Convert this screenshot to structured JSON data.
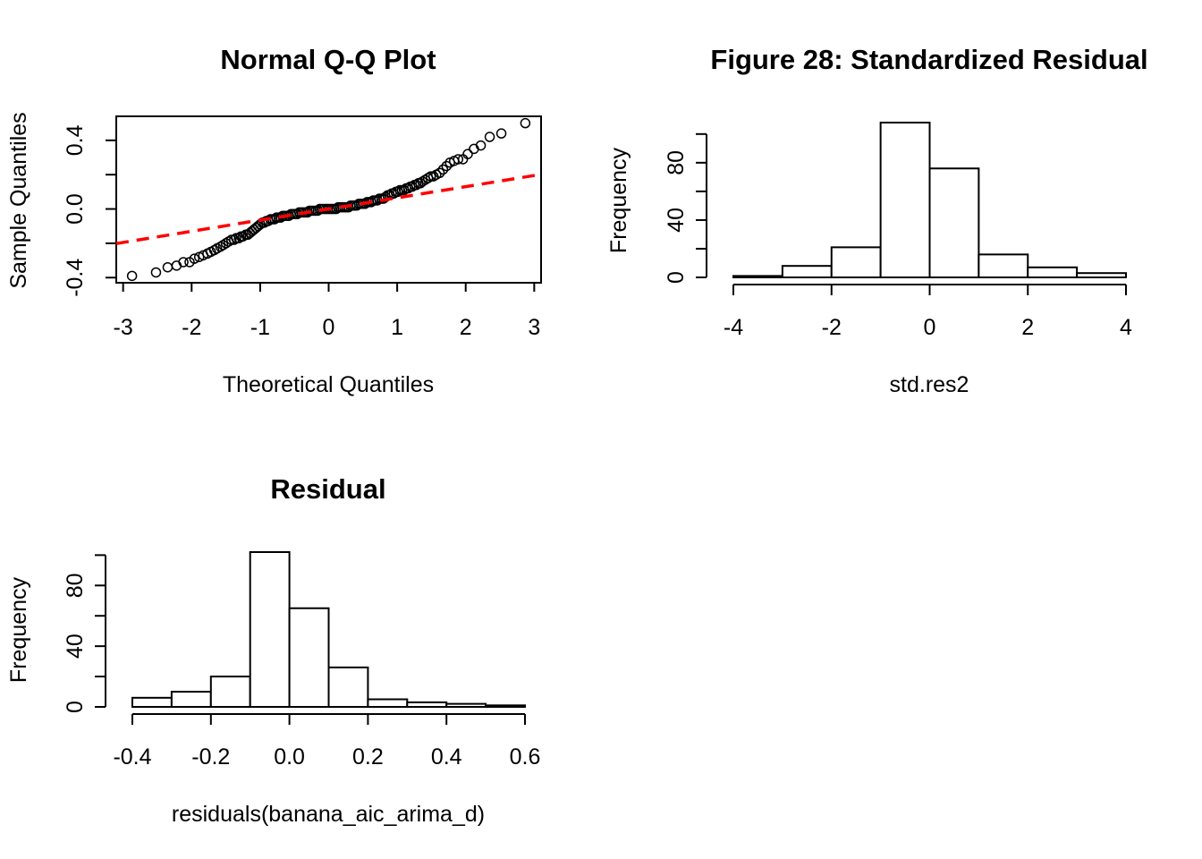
{
  "chart_data": [
    {
      "type": "scatter",
      "title": "Normal Q-Q Plot",
      "xlabel": "Theoretical Quantiles",
      "ylabel": "Sample Quantiles",
      "xlim": [
        -3.1,
        3.1
      ],
      "ylim": [
        -0.43,
        0.54
      ],
      "xticks": [
        -3,
        -2,
        -1,
        0,
        1,
        2,
        3
      ],
      "xtick_labels": [
        "-3",
        "-2",
        "-1",
        "0",
        "1",
        "2",
        "3"
      ],
      "yticks": [
        -0.4,
        -0.2,
        0.0,
        0.2,
        0.4
      ],
      "ytick_labels": [
        "-0.4",
        "0.0",
        "0.4"
      ],
      "ytick_label_values": [
        -0.4,
        0.0,
        0.4
      ],
      "reference_line": {
        "intercept": 0.0,
        "slope": 0.065,
        "color": "#ff0000",
        "style": "dashed"
      },
      "points": [
        [
          -2.87,
          -0.39
        ],
        [
          -2.52,
          -0.37
        ],
        [
          -2.35,
          -0.34
        ],
        [
          -2.22,
          -0.33
        ],
        [
          -2.12,
          -0.31
        ],
        [
          -2.03,
          -0.31
        ],
        [
          -1.96,
          -0.29
        ],
        [
          -1.89,
          -0.28
        ],
        [
          -1.83,
          -0.27
        ],
        [
          -1.77,
          -0.26
        ],
        [
          -1.72,
          -0.25
        ],
        [
          -1.67,
          -0.24
        ],
        [
          -1.63,
          -0.23
        ],
        [
          -1.58,
          -0.22
        ],
        [
          -1.54,
          -0.21
        ],
        [
          -1.5,
          -0.2
        ],
        [
          -1.46,
          -0.19
        ],
        [
          -1.42,
          -0.18
        ],
        [
          -1.38,
          -0.18
        ],
        [
          -1.35,
          -0.17
        ],
        [
          -1.31,
          -0.17
        ],
        [
          -1.28,
          -0.16
        ],
        [
          -1.25,
          -0.16
        ],
        [
          -1.21,
          -0.15
        ],
        [
          -1.18,
          -0.15
        ],
        [
          -1.15,
          -0.14
        ],
        [
          -1.12,
          -0.13
        ],
        [
          -1.09,
          -0.12
        ],
        [
          -1.06,
          -0.11
        ],
        [
          -1.03,
          -0.1
        ],
        [
          -1.0,
          -0.09
        ],
        [
          -0.97,
          -0.08
        ],
        [
          -0.94,
          -0.08
        ],
        [
          -0.91,
          -0.07
        ],
        [
          -0.88,
          -0.07
        ],
        [
          -0.85,
          -0.06
        ],
        [
          -0.82,
          -0.06
        ],
        [
          -0.79,
          -0.06
        ],
        [
          -0.76,
          -0.05
        ],
        [
          -0.73,
          -0.05
        ],
        [
          -0.7,
          -0.05
        ],
        [
          -0.67,
          -0.04
        ],
        [
          -0.64,
          -0.04
        ],
        [
          -0.61,
          -0.04
        ],
        [
          -0.58,
          -0.04
        ],
        [
          -0.55,
          -0.03
        ],
        [
          -0.52,
          -0.03
        ],
        [
          -0.49,
          -0.03
        ],
        [
          -0.46,
          -0.03
        ],
        [
          -0.43,
          -0.02
        ],
        [
          -0.4,
          -0.02
        ],
        [
          -0.37,
          -0.02
        ],
        [
          -0.34,
          -0.02
        ],
        [
          -0.31,
          -0.02
        ],
        [
          -0.28,
          -0.01
        ],
        [
          -0.25,
          -0.01
        ],
        [
          -0.22,
          -0.01
        ],
        [
          -0.19,
          -0.01
        ],
        [
          -0.16,
          -0.01
        ],
        [
          -0.13,
          0.0
        ],
        [
          -0.1,
          0.0
        ],
        [
          -0.07,
          0.0
        ],
        [
          -0.04,
          0.0
        ],
        [
          -0.01,
          0.0
        ],
        [
          0.02,
          0.0
        ],
        [
          0.05,
          0.0
        ],
        [
          0.08,
          0.0
        ],
        [
          0.11,
          0.0
        ],
        [
          0.14,
          0.01
        ],
        [
          0.17,
          0.01
        ],
        [
          0.2,
          0.01
        ],
        [
          0.23,
          0.01
        ],
        [
          0.26,
          0.01
        ],
        [
          0.29,
          0.01
        ],
        [
          0.32,
          0.02
        ],
        [
          0.35,
          0.02
        ],
        [
          0.38,
          0.02
        ],
        [
          0.41,
          0.02
        ],
        [
          0.44,
          0.03
        ],
        [
          0.47,
          0.03
        ],
        [
          0.5,
          0.03
        ],
        [
          0.53,
          0.03
        ],
        [
          0.56,
          0.04
        ],
        [
          0.59,
          0.04
        ],
        [
          0.62,
          0.04
        ],
        [
          0.65,
          0.05
        ],
        [
          0.68,
          0.05
        ],
        [
          0.71,
          0.05
        ],
        [
          0.74,
          0.06
        ],
        [
          0.77,
          0.06
        ],
        [
          0.8,
          0.06
        ],
        [
          0.83,
          0.07
        ],
        [
          0.86,
          0.08
        ],
        [
          0.89,
          0.08
        ],
        [
          0.92,
          0.09
        ],
        [
          0.95,
          0.09
        ],
        [
          0.98,
          0.1
        ],
        [
          1.01,
          0.1
        ],
        [
          1.04,
          0.11
        ],
        [
          1.07,
          0.11
        ],
        [
          1.1,
          0.11
        ],
        [
          1.13,
          0.12
        ],
        [
          1.16,
          0.12
        ],
        [
          1.19,
          0.13
        ],
        [
          1.22,
          0.13
        ],
        [
          1.25,
          0.14
        ],
        [
          1.28,
          0.14
        ],
        [
          1.31,
          0.15
        ],
        [
          1.34,
          0.15
        ],
        [
          1.37,
          0.16
        ],
        [
          1.41,
          0.17
        ],
        [
          1.45,
          0.18
        ],
        [
          1.49,
          0.19
        ],
        [
          1.53,
          0.19
        ],
        [
          1.57,
          0.2
        ],
        [
          1.62,
          0.21
        ],
        [
          1.67,
          0.23
        ],
        [
          1.72,
          0.25
        ],
        [
          1.77,
          0.27
        ],
        [
          1.83,
          0.28
        ],
        [
          1.89,
          0.29
        ],
        [
          1.96,
          0.29
        ],
        [
          2.03,
          0.32
        ],
        [
          2.12,
          0.35
        ],
        [
          2.22,
          0.37
        ],
        [
          2.35,
          0.42
        ],
        [
          2.52,
          0.44
        ],
        [
          2.87,
          0.5
        ]
      ]
    },
    {
      "type": "bar",
      "title": "Figure 28: Standardized Residual",
      "xlabel": "std.res2",
      "ylabel": "Frequency",
      "bin_edges": [
        -4,
        -3,
        -2,
        -1,
        0,
        1,
        2,
        3,
        4
      ],
      "values": [
        1,
        8,
        21,
        108,
        76,
        16,
        7,
        3
      ],
      "xlim": [
        -4,
        4
      ],
      "ylim": [
        0,
        108
      ],
      "xticks": [
        -4,
        -2,
        0,
        2,
        4
      ],
      "xtick_labels": [
        "-4",
        "-2",
        "0",
        "2",
        "4"
      ],
      "yticks": [
        0,
        20,
        40,
        60,
        80,
        100
      ],
      "ytick_labels": [
        "0",
        "40",
        "80"
      ],
      "ytick_label_values": [
        0,
        40,
        80
      ]
    },
    {
      "type": "bar",
      "title": "Residual",
      "xlabel": "residuals(banana_aic_arima_d)",
      "ylabel": "Frequency",
      "bin_edges": [
        -0.4,
        -0.3,
        -0.2,
        -0.1,
        0.0,
        0.1,
        0.2,
        0.3,
        0.4,
        0.5,
        0.6
      ],
      "values": [
        6,
        10,
        20,
        102,
        65,
        26,
        5,
        3,
        2,
        1
      ],
      "xlim": [
        -0.4,
        0.6
      ],
      "ylim": [
        0,
        102
      ],
      "xticks": [
        -0.4,
        -0.2,
        0.0,
        0.2,
        0.4,
        0.6
      ],
      "xtick_labels": [
        "-0.4",
        "-0.2",
        "0.0",
        "0.2",
        "0.4",
        "0.6"
      ],
      "yticks": [
        0,
        20,
        40,
        60,
        80,
        100
      ],
      "ytick_labels": [
        "0",
        "40",
        "80"
      ],
      "ytick_label_values": [
        0,
        40,
        80
      ]
    }
  ]
}
